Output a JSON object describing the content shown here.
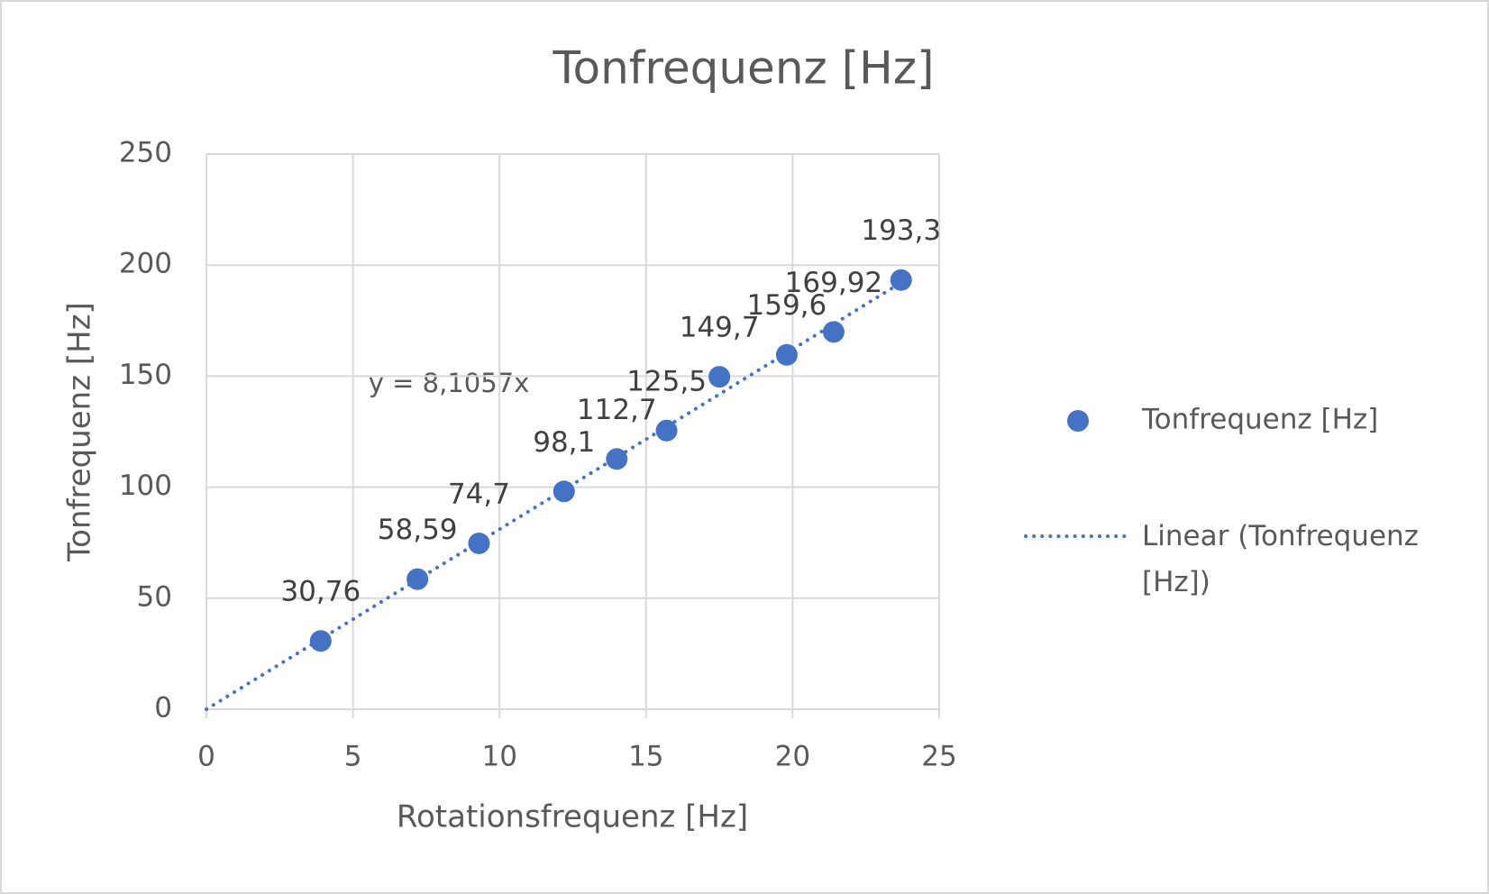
{
  "chart_data": {
    "type": "scatter",
    "title": "Tonfrequenz [Hz]",
    "x_label": "Rotationsfrequenz [Hz]",
    "y_label": "Tonfrequenz [Hz]",
    "series": [
      {
        "name": "Tonfrequenz [Hz]",
        "color": "#4472c4",
        "x": [
          3.9,
          7.2,
          9.3,
          12.2,
          14.0,
          15.7,
          17.5,
          19.8,
          21.4,
          23.7
        ],
        "values": [
          30.76,
          58.59,
          74.7,
          98.1,
          112.7,
          125.5,
          149.7,
          159.6,
          169.92,
          193.3
        ],
        "value_labels": [
          "30,76",
          "58,59",
          "74,7",
          "98,1",
          "112,7",
          "125,5",
          "149,7",
          "159,6",
          "169,92",
          "193,3"
        ]
      }
    ],
    "trendline": {
      "name": "Linear (Tonfrequenz [Hz])",
      "equation": "y = 8,1057x",
      "slope": 8.1057
    },
    "xlim": [
      0,
      25
    ],
    "xticks": [
      0,
      5,
      10,
      15,
      20,
      25
    ],
    "ylim": [
      0,
      250
    ],
    "yticks": [
      0,
      50,
      100,
      150,
      200,
      250
    ],
    "grid": true,
    "legend": "right"
  }
}
